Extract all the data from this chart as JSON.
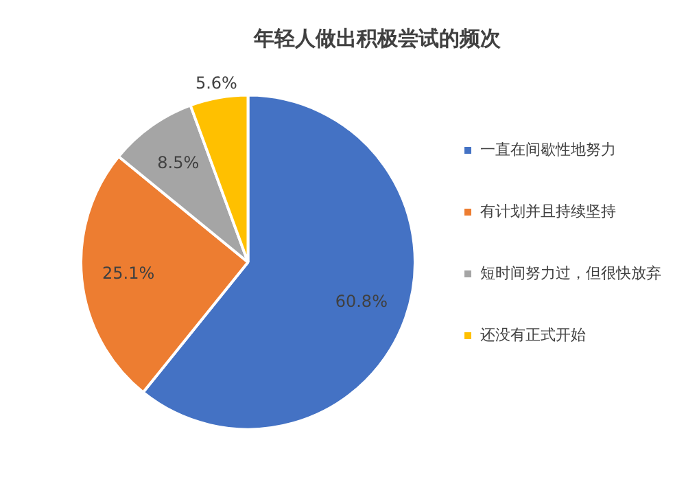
{
  "chart_data": {
    "type": "pie",
    "title": "年轻人做出积极尝试的频次",
    "categories": [
      "一直在间歇性地努力",
      "有计划并且持续坚持",
      "短时间努力过，但很快放弃",
      "还没有正式开始"
    ],
    "values": [
      60.8,
      25.1,
      8.5,
      5.6
    ],
    "colors": [
      "#4472c4",
      "#ed7d31",
      "#a5a5a5",
      "#ffc000"
    ],
    "value_labels": [
      "60.8%",
      "25.1%",
      "8.5%",
      "5.6%"
    ],
    "legend": "right"
  }
}
